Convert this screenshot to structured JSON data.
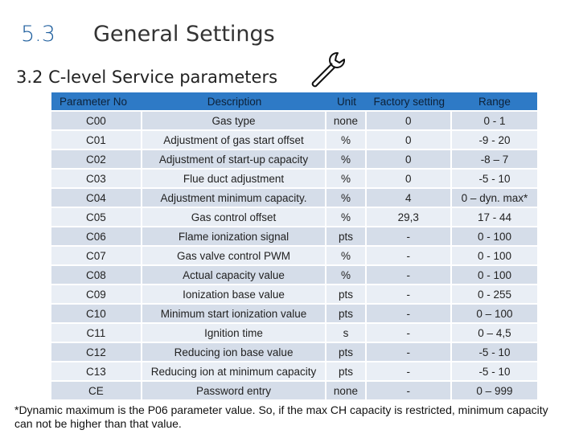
{
  "heading": {
    "number": "5.3",
    "title": "General Settings"
  },
  "subheading": "3.2 C-level Service parameters",
  "wrench_icon": "wrench-icon",
  "table": {
    "headers": [
      "Parameter No",
      "Description",
      "Unit",
      "Factory setting",
      "Range"
    ],
    "rows": [
      [
        "C00",
        "Gas type",
        "none",
        "0",
        "0 - 1"
      ],
      [
        "C01",
        "Adjustment of gas start offset",
        "%",
        "0",
        "-9 - 20"
      ],
      [
        "C02",
        "Adjustment of start-up capacity",
        "%",
        "0",
        "-8 – 7"
      ],
      [
        "C03",
        "Flue duct adjustment",
        "%",
        "0",
        "-5 - 10"
      ],
      [
        "C04",
        "Adjustment minimum capacity.",
        "%",
        "4",
        "0 – dyn. max*"
      ],
      [
        "C05",
        "Gas control offset",
        "%",
        "29,3",
        "17 - 44"
      ],
      [
        "C06",
        "Flame ionization signal",
        "pts",
        "-",
        "0 - 100"
      ],
      [
        "C07",
        "Gas valve control PWM",
        "%",
        "-",
        "0 - 100"
      ],
      [
        "C08",
        "Actual capacity value",
        "%",
        "-",
        "0 -  100"
      ],
      [
        "C09",
        "Ionization base value",
        "pts",
        "-",
        "0 - 255"
      ],
      [
        "C10",
        "Minimum start ionization value",
        "pts",
        "-",
        "0 – 100"
      ],
      [
        "C11",
        "Ignition time",
        "s",
        "-",
        "0 – 4,5"
      ],
      [
        "C12",
        "Reducing ion base value",
        "pts",
        "-",
        "-5 - 10"
      ],
      [
        "C13",
        "Reducing ion at minimum capacity",
        "pts",
        "-",
        "-5 - 10"
      ],
      [
        "CE",
        "Password entry",
        "none",
        "-",
        "0 – 999"
      ]
    ]
  },
  "footnote": "*Dynamic maximum is the P06 parameter value. So, if the max CH capacity is restricted, minimum capacity can not be higher than that value."
}
